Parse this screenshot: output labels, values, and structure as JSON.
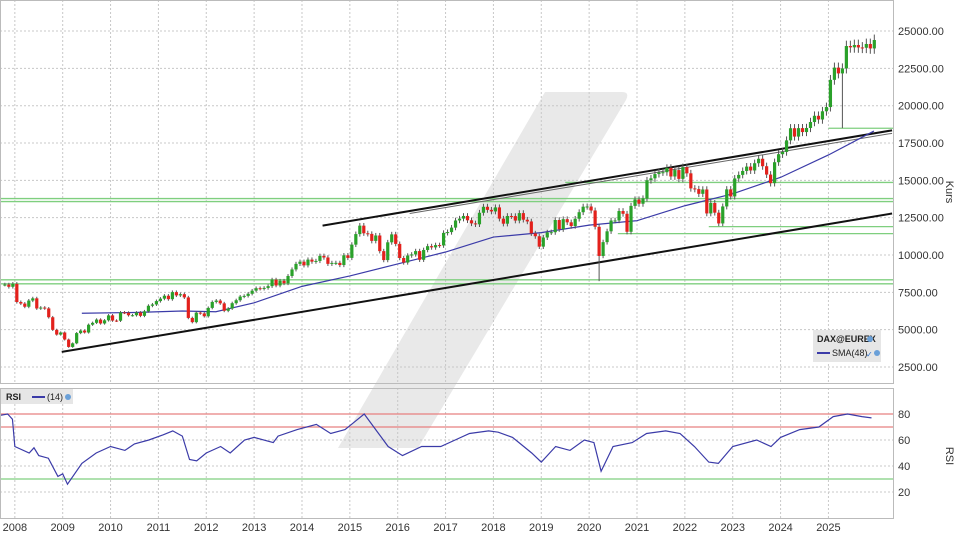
{
  "chart_data": [
    {
      "type": "candlestick",
      "ylabel": "Kurs",
      "ylim": [
        1360,
        27080
      ],
      "xlim": [
        2007.69,
        2026.37
      ],
      "grid": true,
      "yticks": [
        "2500.00",
        "5000.00",
        "7500.00",
        "10000.00",
        "12500.00",
        "15000.00",
        "17500.00",
        "20000.00",
        "22500.00",
        "25000.00"
      ],
      "xticks": [
        "2008",
        "2009",
        "2010",
        "2011",
        "2012",
        "2013",
        "2014",
        "2015",
        "2016",
        "2017",
        "2018",
        "2019",
        "2020",
        "2021",
        "2022",
        "2023",
        "2024",
        "2025"
      ],
      "legend": {
        "placement": "bottom-right",
        "instrument": "DAX@EUREX",
        "indicator": "SMA(48)"
      },
      "colors": {
        "up": "#2aa12a",
        "down": "#e3211c",
        "sma": "#3b3ba8",
        "support": "#7fcf7f",
        "trend": "#111111",
        "channel_inner": "#666666"
      },
      "monthly_close": {
        "start": "2007-10",
        "values": [
          8020,
          7870,
          8067,
          6851,
          6748,
          6535,
          6949,
          7097,
          6418,
          6479,
          6422,
          5831,
          4988,
          4669,
          4810,
          4338,
          3844,
          4085,
          4770,
          4941,
          4809,
          5332,
          5458,
          5675,
          5415,
          5625,
          5957,
          5608,
          5598,
          6154,
          6136,
          5964,
          5966,
          6148,
          5925,
          6229,
          6601,
          6688,
          6914,
          7077,
          7272,
          7041,
          7514,
          7294,
          7376,
          7159,
          5785,
          5502,
          6141,
          6088,
          5898,
          6458,
          6856,
          6947,
          6761,
          6264,
          6416,
          6772,
          6970,
          7216,
          7260,
          7405,
          7612,
          7776,
          7741,
          7795,
          7914,
          8349,
          7959,
          8276,
          8103,
          8594,
          9033,
          9405,
          9552,
          9306,
          9692,
          9556,
          9603,
          9943,
          9833,
          9407,
          9470,
          9474,
          9327,
          9980,
          9806,
          10694,
          11401,
          11966,
          11454,
          11413,
          10945,
          11308,
          10259,
          9660,
          10850,
          11382,
          10743,
          9798,
          9495,
          9966,
          10039,
          10263,
          9680,
          10337,
          10593,
          10511,
          10665,
          10640,
          11481,
          11535,
          11834,
          12313,
          12438,
          12615,
          12325,
          12118,
          12056,
          12829,
          13230,
          13024,
          12918,
          13189,
          12436,
          12097,
          12612,
          12605,
          12306,
          12806,
          12364,
          12247,
          11448,
          11257,
          10559,
          11173,
          11516,
          11526,
          12344,
          11727,
          12399,
          12189,
          11939,
          12428,
          12867,
          13236,
          13249,
          12982,
          11890,
          9936,
          10862,
          11587,
          12311,
          12313,
          12945,
          12761,
          11556,
          13291,
          13719,
          13433,
          13786,
          15008,
          15136,
          15421,
          15531,
          15544,
          15835,
          15260,
          15688,
          15100,
          15885,
          15471,
          14461,
          14415,
          14098,
          14388,
          12784,
          13484,
          12835,
          12114,
          13253,
          14397,
          13924,
          15128,
          15365,
          15629,
          15922,
          15664,
          16148,
          16447,
          15947,
          15387,
          14810,
          16215,
          16752,
          16904,
          17678,
          18492,
          17932,
          18498,
          18235,
          18509,
          18907,
          19325,
          19078,
          19626,
          19909,
          21732,
          22551,
          22163,
          22497,
          23997,
          23909,
          24065,
          23902,
          23881,
          24133,
          23836,
          24400
        ]
      },
      "notable_lows": [
        {
          "month": "2020-03",
          "low": 8250
        },
        {
          "month": "2025-04",
          "low": 18500
        }
      ],
      "sma48": [
        [
          2009.4,
          6100
        ],
        [
          2010.5,
          6150
        ],
        [
          2011.5,
          6250
        ],
        [
          2012.2,
          6200
        ],
        [
          2013.0,
          6800
        ],
        [
          2014.0,
          7900
        ],
        [
          2015.0,
          8600
        ],
        [
          2016.0,
          9400
        ],
        [
          2017.0,
          10200
        ],
        [
          2018.0,
          11200
        ],
        [
          2019.0,
          11500
        ],
        [
          2020.0,
          12000
        ],
        [
          2021.0,
          12300
        ],
        [
          2022.0,
          13300
        ],
        [
          2023.0,
          14100
        ],
        [
          2024.0,
          15200
        ],
        [
          2025.0,
          16700
        ],
        [
          2025.95,
          18300
        ]
      ],
      "trend_lines": [
        {
          "kind": "upper",
          "from": [
            2014.43,
            11970
          ],
          "to": [
            2026.33,
            18350
          ]
        },
        {
          "kind": "upper-inner",
          "from": [
            2016.25,
            12780
          ],
          "to": [
            2026.33,
            18150
          ]
        },
        {
          "kind": "lower",
          "from": [
            2008.98,
            3510
          ],
          "to": [
            2026.33,
            12780
          ]
        }
      ],
      "support_levels": [
        {
          "value": 18490,
          "from": 2025.0
        },
        {
          "value": 14860,
          "from": 2019.5
        },
        {
          "value": 13780,
          "from": 2007.69
        },
        {
          "value": 13580,
          "from": 2007.69
        },
        {
          "value": 11900,
          "from": 2022.5
        },
        {
          "value": 11430,
          "from": 2020.6
        },
        {
          "value": 8340,
          "from": 2007.69
        },
        {
          "value": 8070,
          "from": 2007.69
        }
      ]
    },
    {
      "type": "line",
      "title": "RSI",
      "ylabel": "RSI",
      "ylim": [
        0,
        100
      ],
      "yticks": [
        "20",
        "40",
        "60",
        "80"
      ],
      "legend": {
        "placement": "top-left",
        "period": "(14)"
      },
      "reference_lines": [
        {
          "value": 80,
          "color": "#e88080"
        },
        {
          "value": 70,
          "color": "#e88080"
        },
        {
          "value": 30,
          "color": "#7fcf7f"
        }
      ],
      "line_color": "#3b3ba8",
      "series": [
        [
          2007.7,
          79
        ],
        [
          2007.85,
          80
        ],
        [
          2007.95,
          76
        ],
        [
          2008.0,
          55
        ],
        [
          2008.3,
          50
        ],
        [
          2008.4,
          54
        ],
        [
          2008.5,
          48
        ],
        [
          2008.7,
          46
        ],
        [
          2008.9,
          32
        ],
        [
          2009.0,
          34
        ],
        [
          2009.1,
          26
        ],
        [
          2009.4,
          42
        ],
        [
          2009.7,
          50
        ],
        [
          2010.0,
          55
        ],
        [
          2010.3,
          52
        ],
        [
          2010.5,
          57
        ],
        [
          2010.8,
          60
        ],
        [
          2011.1,
          64
        ],
        [
          2011.3,
          67
        ],
        [
          2011.5,
          63
        ],
        [
          2011.65,
          45
        ],
        [
          2011.8,
          44
        ],
        [
          2012.0,
          50
        ],
        [
          2012.3,
          55
        ],
        [
          2012.5,
          50
        ],
        [
          2012.8,
          60
        ],
        [
          2013.0,
          62
        ],
        [
          2013.4,
          58
        ],
        [
          2013.5,
          63
        ],
        [
          2013.9,
          68
        ],
        [
          2014.3,
          72
        ],
        [
          2014.6,
          65
        ],
        [
          2014.9,
          68
        ],
        [
          2015.1,
          74
        ],
        [
          2015.3,
          80
        ],
        [
          2015.6,
          65
        ],
        [
          2015.8,
          55
        ],
        [
          2016.1,
          48
        ],
        [
          2016.5,
          55
        ],
        [
          2016.9,
          55
        ],
        [
          2017.2,
          60
        ],
        [
          2017.5,
          65
        ],
        [
          2017.9,
          67
        ],
        [
          2018.1,
          66
        ],
        [
          2018.4,
          62
        ],
        [
          2018.8,
          50
        ],
        [
          2019.0,
          43
        ],
        [
          2019.3,
          55
        ],
        [
          2019.6,
          52
        ],
        [
          2019.9,
          60
        ],
        [
          2020.1,
          58
        ],
        [
          2020.25,
          36
        ],
        [
          2020.5,
          55
        ],
        [
          2020.9,
          58
        ],
        [
          2021.2,
          65
        ],
        [
          2021.6,
          67
        ],
        [
          2021.9,
          65
        ],
        [
          2022.2,
          55
        ],
        [
          2022.5,
          43
        ],
        [
          2022.7,
          42
        ],
        [
          2023.0,
          55
        ],
        [
          2023.5,
          60
        ],
        [
          2023.8,
          55
        ],
        [
          2024.0,
          62
        ],
        [
          2024.4,
          68
        ],
        [
          2024.8,
          70
        ],
        [
          2025.1,
          78
        ],
        [
          2025.4,
          80
        ],
        [
          2025.7,
          78
        ],
        [
          2025.9,
          77
        ]
      ]
    }
  ]
}
